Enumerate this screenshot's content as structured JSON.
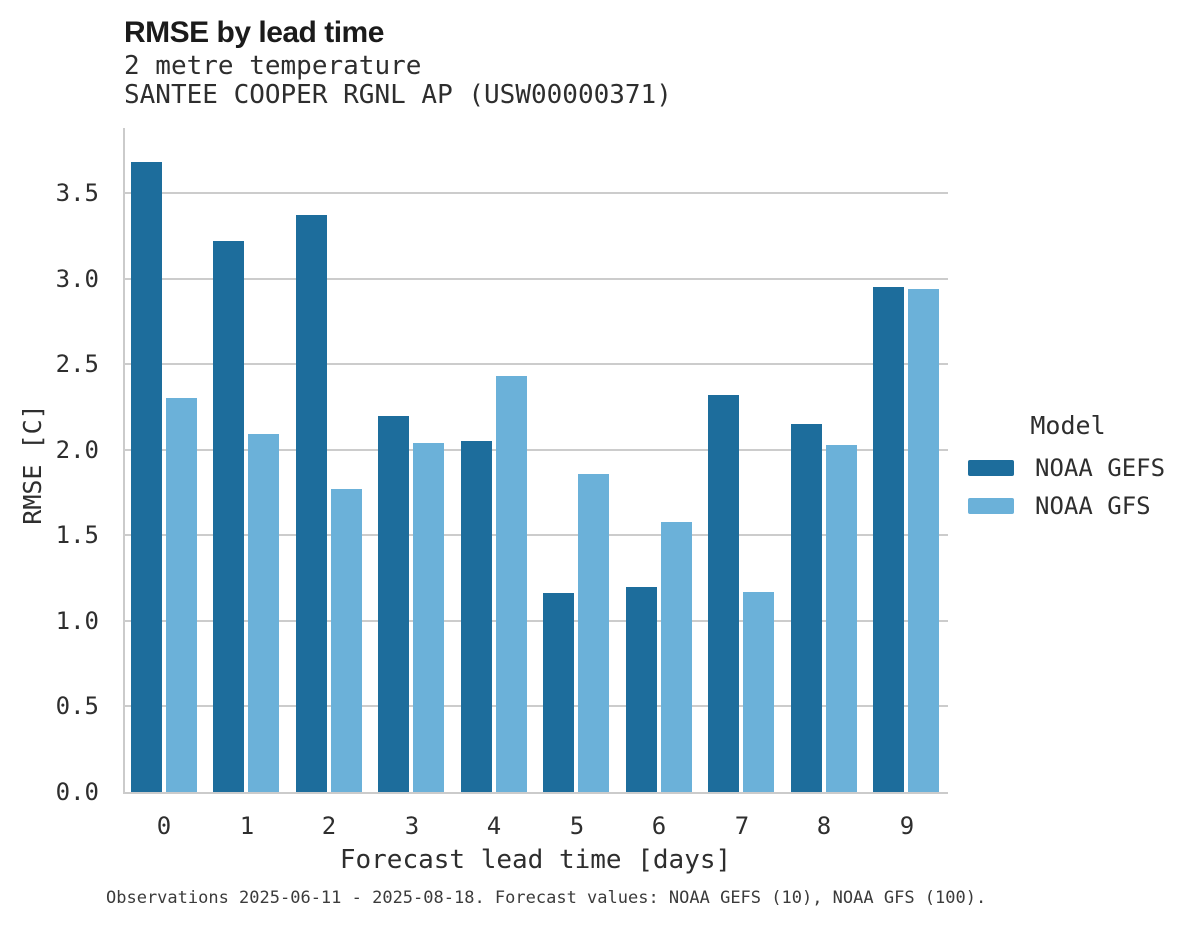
{
  "header": {
    "title": "RMSE by lead time",
    "subtitle_variable": "2 metre temperature",
    "subtitle_station": "SANTEE COOPER RGNL AP (USW00000371)"
  },
  "legend": {
    "title": "Model"
  },
  "caption": "Observations 2025-06-11 - 2025-08-18. Forecast values: NOAA GEFS (10), NOAA GFS (100).",
  "colors": {
    "gefs_dark_blue": "#1d6d9c",
    "gfs_light_blue": "#6bb1d9",
    "gridline_gray": "#cccccc",
    "text_dark": "#2e2e2e"
  },
  "chart_data": {
    "type": "bar",
    "title": "RMSE by lead time",
    "subtitle": "2 metre temperature / SANTEE COOPER RGNL AP (USW00000371)",
    "xlabel": "Forecast lead time [days]",
    "ylabel": "RMSE [C]",
    "categories": [
      "0",
      "1",
      "2",
      "3",
      "4",
      "5",
      "6",
      "7",
      "8",
      "9"
    ],
    "series": [
      {
        "name": "NOAA GEFS",
        "color": "#1d6d9c",
        "values": [
          3.68,
          3.22,
          3.37,
          2.2,
          2.05,
          1.16,
          1.2,
          2.32,
          2.15,
          2.95
        ]
      },
      {
        "name": "NOAA GFS",
        "color": "#6bb1d9",
        "values": [
          2.3,
          2.09,
          1.77,
          2.04,
          2.43,
          1.86,
          1.58,
          1.17,
          2.03,
          2.94
        ]
      }
    ],
    "yticks": [
      0.0,
      0.5,
      1.0,
      1.5,
      2.0,
      2.5,
      3.0,
      3.5
    ],
    "ylim": [
      0,
      3.88
    ],
    "grid": true,
    "legend_position": "right"
  }
}
